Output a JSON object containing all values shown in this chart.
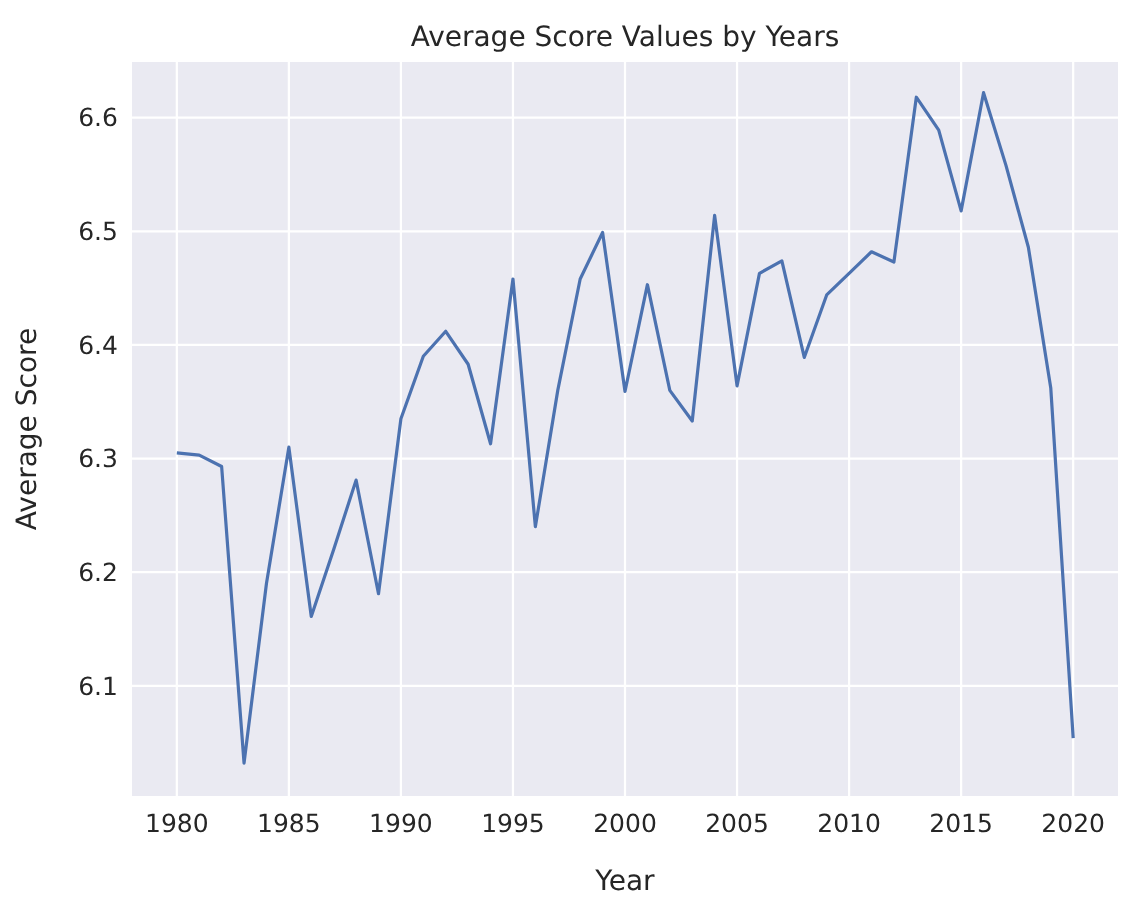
{
  "chart_data": {
    "type": "line",
    "title": "Average Score Values by Years",
    "xlabel": "Year",
    "ylabel": "Average Score",
    "x": [
      1980,
      1981,
      1982,
      1983,
      1984,
      1985,
      1986,
      1987,
      1988,
      1989,
      1990,
      1991,
      1992,
      1993,
      1994,
      1995,
      1996,
      1997,
      1998,
      1999,
      2000,
      2001,
      2002,
      2003,
      2004,
      2005,
      2006,
      2007,
      2008,
      2009,
      2010,
      2011,
      2012,
      2013,
      2014,
      2015,
      2016,
      2017,
      2018,
      2019,
      2020
    ],
    "series": [
      {
        "color": "#4c72b0",
        "values": [
          6.305,
          6.303,
          6.293,
          6.032,
          6.19,
          6.31,
          6.161,
          6.22,
          6.281,
          6.181,
          6.335,
          6.39,
          6.412,
          6.383,
          6.313,
          6.458,
          6.24,
          6.36,
          6.458,
          6.499,
          6.359,
          6.453,
          6.36,
          6.333,
          6.514,
          6.364,
          6.463,
          6.474,
          6.389,
          6.444,
          6.463,
          6.482,
          6.473,
          6.618,
          6.589,
          6.518,
          6.622,
          6.558,
          6.486,
          6.362,
          6.054
        ]
      }
    ],
    "xlim": [
      1978,
      2022
    ],
    "xticks": [
      1980,
      1985,
      1990,
      1995,
      2000,
      2005,
      2010,
      2015,
      2020
    ],
    "ylim": [
      6.003,
      6.649
    ],
    "yticks": [
      {
        "value": 6.1,
        "label": "6.1"
      },
      {
        "value": 6.2,
        "label": "6.2"
      },
      {
        "value": 6.3,
        "label": "6.3"
      },
      {
        "value": 6.4,
        "label": "6.4"
      },
      {
        "value": 6.5,
        "label": "6.5"
      },
      {
        "value": 6.6,
        "label": "6.6"
      }
    ],
    "grid": true
  }
}
